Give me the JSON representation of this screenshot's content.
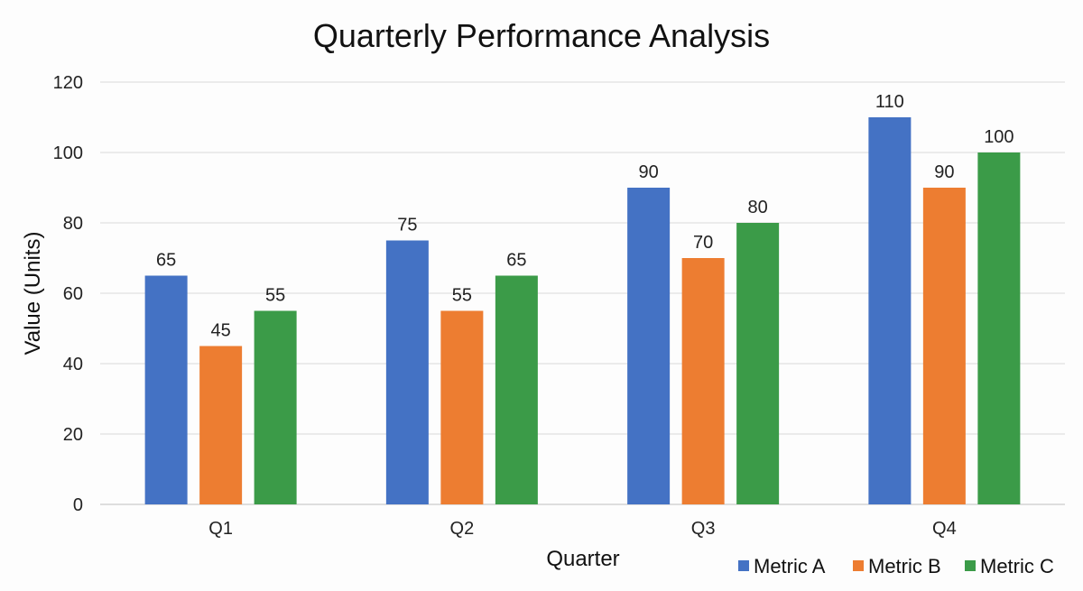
{
  "chart_data": {
    "type": "bar",
    "title": "Quarterly Performance Analysis",
    "xlabel": "Quarter",
    "ylabel": "Value (Units)",
    "categories": [
      "Q1",
      "Q2",
      "Q3",
      "Q4"
    ],
    "ylim": [
      0,
      120
    ],
    "yticks": [
      0,
      20,
      40,
      60,
      80,
      100,
      120
    ],
    "grid": true,
    "legend_position": "bottom-right",
    "series": [
      {
        "name": "Metric A",
        "color": "#4472C4",
        "values": [
          65,
          75,
          90,
          110
        ]
      },
      {
        "name": "Metric B",
        "color": "#ED7D31",
        "values": [
          45,
          55,
          70,
          90
        ]
      },
      {
        "name": "Metric C",
        "color": "#3B9B48",
        "values": [
          55,
          65,
          80,
          100
        ]
      }
    ]
  }
}
